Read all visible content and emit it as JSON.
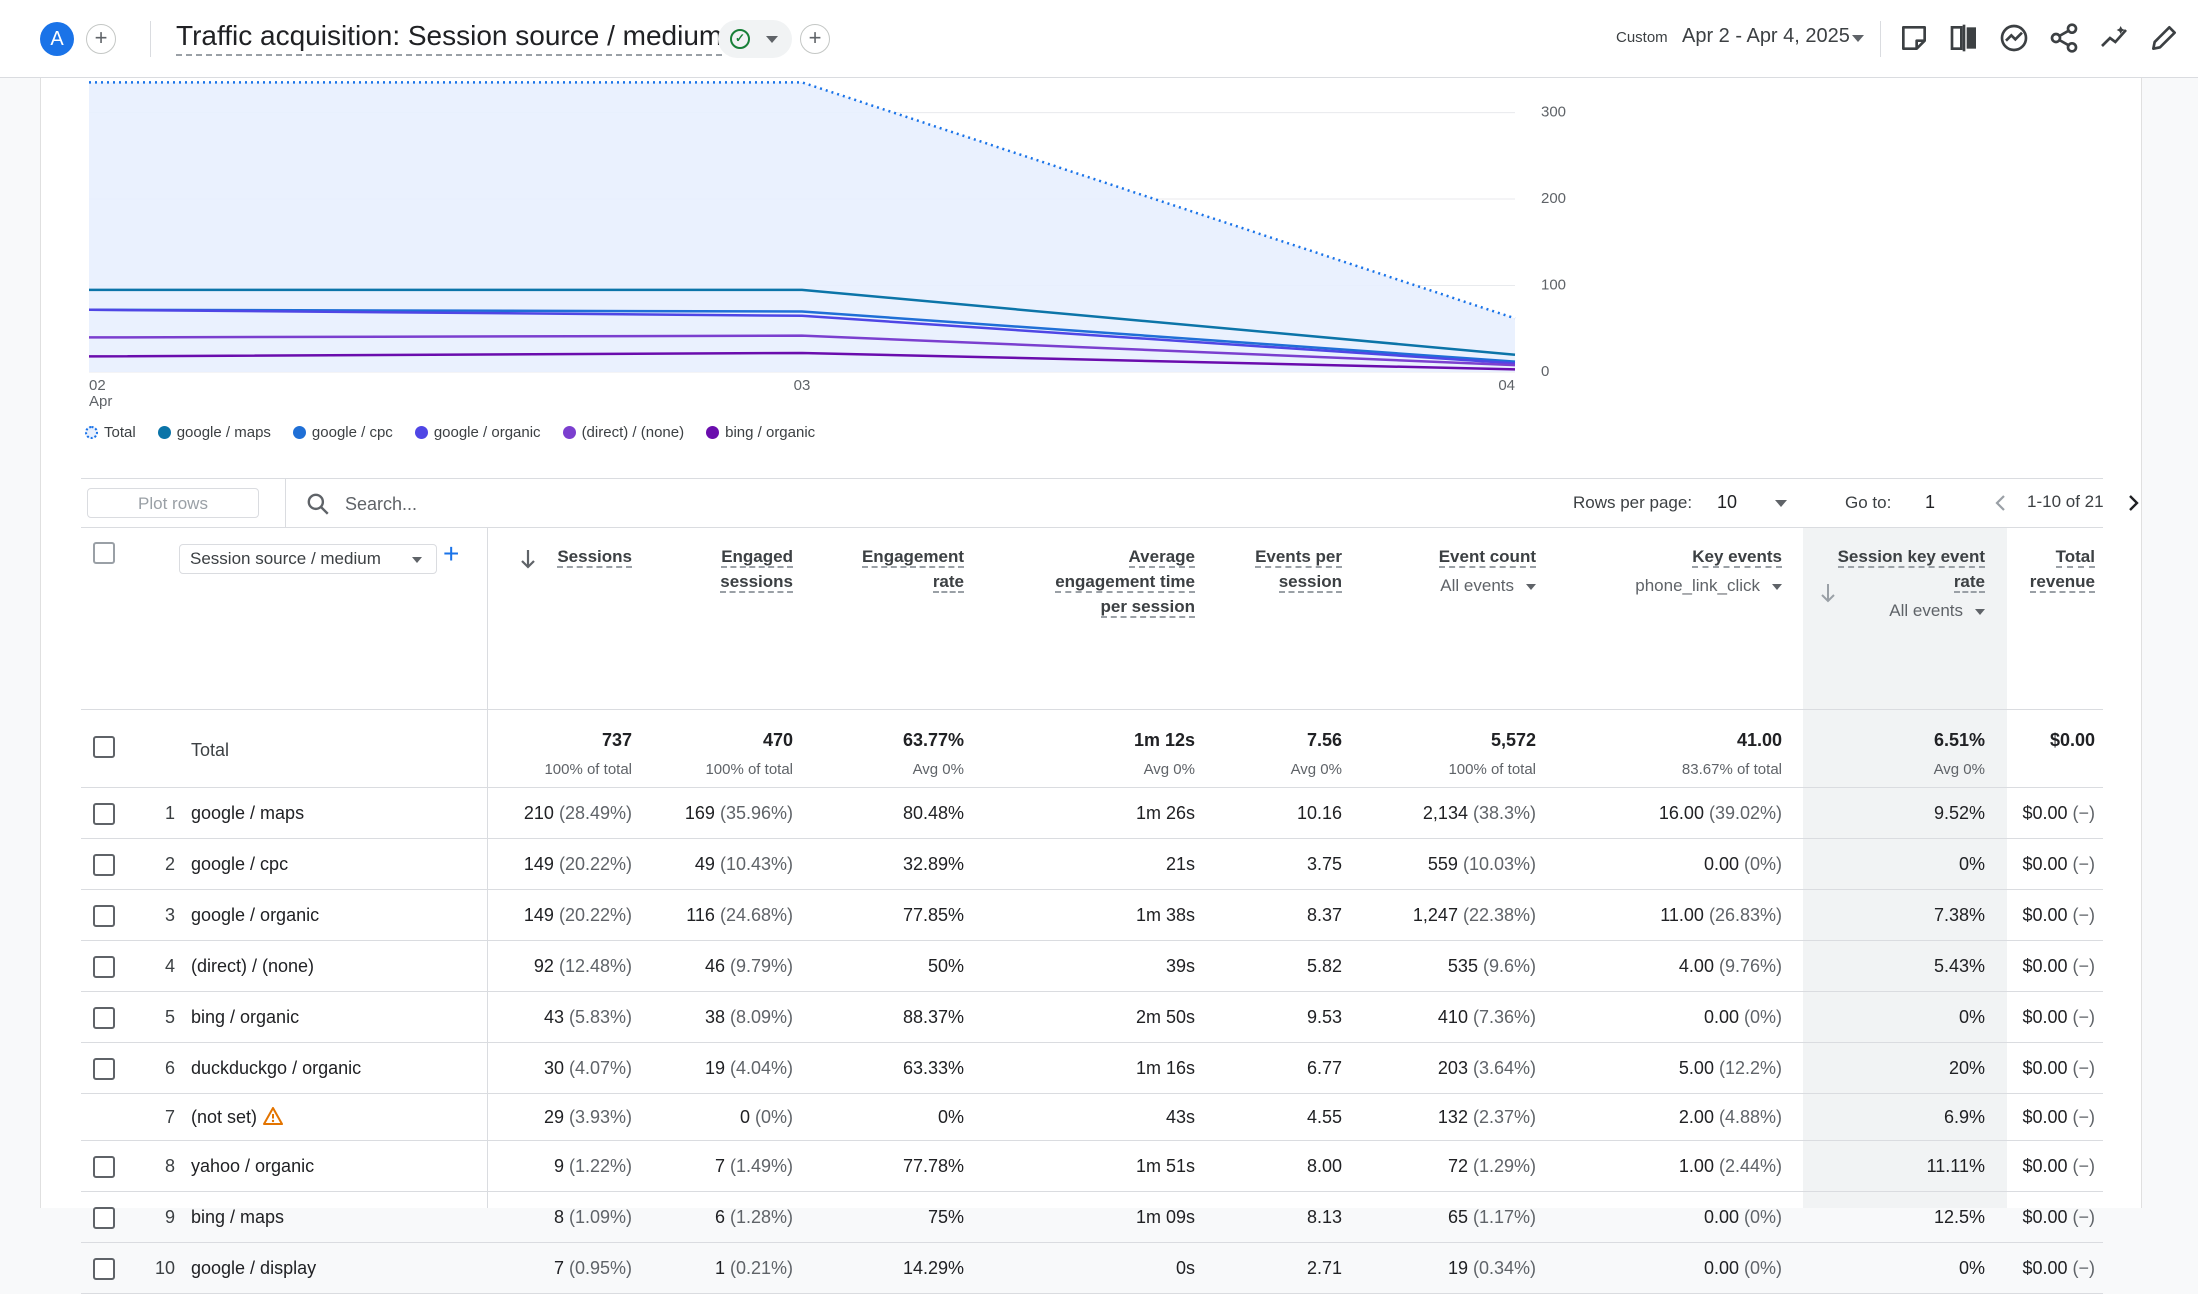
{
  "header": {
    "avatar_letter": "A",
    "title": "Traffic acquisition: Session source / medium",
    "date_chip": "Custom",
    "date_range": "Apr 2 - Apr 4, 2025"
  },
  "icons": {
    "add": "plus-icon",
    "status": "check-circle-icon",
    "toolbar": [
      "notes-icon",
      "compare-icon",
      "insights-icon",
      "share-icon",
      "trend-icon",
      "edit-icon"
    ],
    "search": "search-icon",
    "warning": "warning-triangle-icon"
  },
  "colors": {
    "accent": "#1a73e8",
    "total_fill": "#e8f0fe",
    "series": [
      "#0b74a8",
      "#1f6fd6",
      "#4f46e5",
      "#7b3fcf",
      "#6a0dad"
    ]
  },
  "chart_data": {
    "type": "line",
    "x": [
      "02 Apr",
      "03",
      "04"
    ],
    "x_ticks": [
      "02",
      "03",
      "04"
    ],
    "x_sub": "Apr",
    "y_ticks": [
      "300",
      "200",
      "100",
      "0"
    ],
    "ylim": [
      0,
      340
    ],
    "series": [
      {
        "name": "Total",
        "values": [
          335,
          335,
          62
        ],
        "style": "dotted-area"
      },
      {
        "name": "google / maps",
        "values": [
          95,
          95,
          20
        ]
      },
      {
        "name": "google / cpc",
        "values": [
          72,
          70,
          12
        ]
      },
      {
        "name": "google / organic",
        "values": [
          72,
          65,
          10
        ]
      },
      {
        "name": "(direct) / (none)",
        "values": [
          40,
          42,
          8
        ]
      },
      {
        "name": "bing / organic",
        "values": [
          18,
          22,
          3
        ]
      }
    ]
  },
  "legend": [
    "Total",
    "google / maps",
    "google / cpc",
    "google / organic",
    "(direct) / (none)",
    "bing / organic"
  ],
  "toolbar": {
    "plot_rows": "Plot rows",
    "search_placeholder": "Search...",
    "rows_per_page_label": "Rows per page:",
    "rows_per_page": "10",
    "goto_label": "Go to:",
    "goto_value": "1",
    "page_range": "1-10 of 21"
  },
  "table": {
    "dimension_select": "Session source / medium",
    "columns": [
      {
        "title": "Sessions",
        "lines": [
          "Sessions"
        ]
      },
      {
        "title": "Engaged sessions",
        "lines": [
          "Engaged",
          "sessions"
        ]
      },
      {
        "title": "Engagement rate",
        "lines": [
          "Engagement",
          "rate"
        ]
      },
      {
        "title": "Average engagement time per session",
        "lines": [
          "Average",
          "engagement time",
          "per session"
        ]
      },
      {
        "title": "Events per session",
        "lines": [
          "Events per",
          "session"
        ]
      },
      {
        "title": "Event count",
        "lines": [
          "Event count"
        ],
        "filter": "All events"
      },
      {
        "title": "Key events",
        "lines": [
          "Key events"
        ],
        "filter": "phone_link_click"
      },
      {
        "title": "Session key event rate",
        "lines": [
          "Session key event",
          "rate"
        ],
        "filter": "All events"
      },
      {
        "title": "Total revenue",
        "lines": [
          "Total",
          "revenue"
        ]
      }
    ],
    "total": {
      "label": "Total",
      "values": [
        "737",
        "470",
        "63.77%",
        "1m 12s",
        "7.56",
        "5,572",
        "41.00",
        "6.51%",
        "$0.00"
      ],
      "subs": [
        "100% of total",
        "100% of total",
        "Avg 0%",
        "Avg 0%",
        "Avg 0%",
        "100% of total",
        "83.67% of total",
        "Avg 0%",
        ""
      ]
    },
    "rows": [
      {
        "n": "1",
        "dim": "google / maps",
        "c": [
          [
            "210",
            " (28.49%)"
          ],
          [
            "169",
            " (35.96%)"
          ],
          [
            "80.48%",
            ""
          ],
          [
            "1m 26s",
            ""
          ],
          [
            "10.16",
            ""
          ],
          [
            "2,134",
            " (38.3%)"
          ],
          [
            "16.00",
            " (39.02%)"
          ],
          [
            "9.52%",
            ""
          ],
          [
            "$0.00",
            " (−)"
          ]
        ]
      },
      {
        "n": "2",
        "dim": "google / cpc",
        "c": [
          [
            "149",
            " (20.22%)"
          ],
          [
            "49",
            " (10.43%)"
          ],
          [
            "32.89%",
            ""
          ],
          [
            "21s",
            ""
          ],
          [
            "3.75",
            ""
          ],
          [
            "559",
            " (10.03%)"
          ],
          [
            "0.00",
            " (0%)"
          ],
          [
            "0%",
            ""
          ],
          [
            "$0.00",
            " (−)"
          ]
        ]
      },
      {
        "n": "3",
        "dim": "google / organic",
        "c": [
          [
            "149",
            " (20.22%)"
          ],
          [
            "116",
            " (24.68%)"
          ],
          [
            "77.85%",
            ""
          ],
          [
            "1m 38s",
            ""
          ],
          [
            "8.37",
            ""
          ],
          [
            "1,247",
            " (22.38%)"
          ],
          [
            "11.00",
            " (26.83%)"
          ],
          [
            "7.38%",
            ""
          ],
          [
            "$0.00",
            " (−)"
          ]
        ]
      },
      {
        "n": "4",
        "dim": "(direct) / (none)",
        "c": [
          [
            "92",
            " (12.48%)"
          ],
          [
            "46",
            " (9.79%)"
          ],
          [
            "50%",
            ""
          ],
          [
            "39s",
            ""
          ],
          [
            "5.82",
            ""
          ],
          [
            "535",
            " (9.6%)"
          ],
          [
            "4.00",
            " (9.76%)"
          ],
          [
            "5.43%",
            ""
          ],
          [
            "$0.00",
            " (−)"
          ]
        ]
      },
      {
        "n": "5",
        "dim": "bing / organic",
        "c": [
          [
            "43",
            " (5.83%)"
          ],
          [
            "38",
            " (8.09%)"
          ],
          [
            "88.37%",
            ""
          ],
          [
            "2m 50s",
            ""
          ],
          [
            "9.53",
            ""
          ],
          [
            "410",
            " (7.36%)"
          ],
          [
            "0.00",
            " (0%)"
          ],
          [
            "0%",
            ""
          ],
          [
            "$0.00",
            " (−)"
          ]
        ]
      },
      {
        "n": "6",
        "dim": "duckduckgo / organic",
        "c": [
          [
            "30",
            " (4.07%)"
          ],
          [
            "19",
            " (4.04%)"
          ],
          [
            "63.33%",
            ""
          ],
          [
            "1m 16s",
            ""
          ],
          [
            "6.77",
            ""
          ],
          [
            "203",
            " (3.64%)"
          ],
          [
            "5.00",
            " (12.2%)"
          ],
          [
            "20%",
            ""
          ],
          [
            "$0.00",
            " (−)"
          ]
        ]
      },
      {
        "n": "7",
        "dim": "(not set)",
        "warn": true,
        "c": [
          [
            "29",
            " (3.93%)"
          ],
          [
            "0",
            " (0%)"
          ],
          [
            "0%",
            ""
          ],
          [
            "43s",
            ""
          ],
          [
            "4.55",
            ""
          ],
          [
            "132",
            " (2.37%)"
          ],
          [
            "2.00",
            " (4.88%)"
          ],
          [
            "6.9%",
            ""
          ],
          [
            "$0.00",
            " (−)"
          ]
        ]
      },
      {
        "n": "8",
        "dim": "yahoo / organic",
        "c": [
          [
            "9",
            " (1.22%)"
          ],
          [
            "7",
            " (1.49%)"
          ],
          [
            "77.78%",
            ""
          ],
          [
            "1m 51s",
            ""
          ],
          [
            "8.00",
            ""
          ],
          [
            "72",
            " (1.29%)"
          ],
          [
            "1.00",
            " (2.44%)"
          ],
          [
            "11.11%",
            ""
          ],
          [
            "$0.00",
            " (−)"
          ]
        ]
      },
      {
        "n": "9",
        "dim": "bing / maps",
        "c": [
          [
            "8",
            " (1.09%)"
          ],
          [
            "6",
            " (1.28%)"
          ],
          [
            "75%",
            ""
          ],
          [
            "1m 09s",
            ""
          ],
          [
            "8.13",
            ""
          ],
          [
            "65",
            " (1.17%)"
          ],
          [
            "0.00",
            " (0%)"
          ],
          [
            "12.5%",
            ""
          ],
          [
            "$0.00",
            " (−)"
          ]
        ]
      },
      {
        "n": "10",
        "dim": "google / display",
        "c": [
          [
            "7",
            " (0.95%)"
          ],
          [
            "1",
            " (0.21%)"
          ],
          [
            "14.29%",
            ""
          ],
          [
            "0s",
            ""
          ],
          [
            "2.71",
            ""
          ],
          [
            "19",
            " (0.34%)"
          ],
          [
            "0.00",
            " (0%)"
          ],
          [
            "0%",
            ""
          ],
          [
            "$0.00",
            " (−)"
          ]
        ]
      }
    ]
  }
}
